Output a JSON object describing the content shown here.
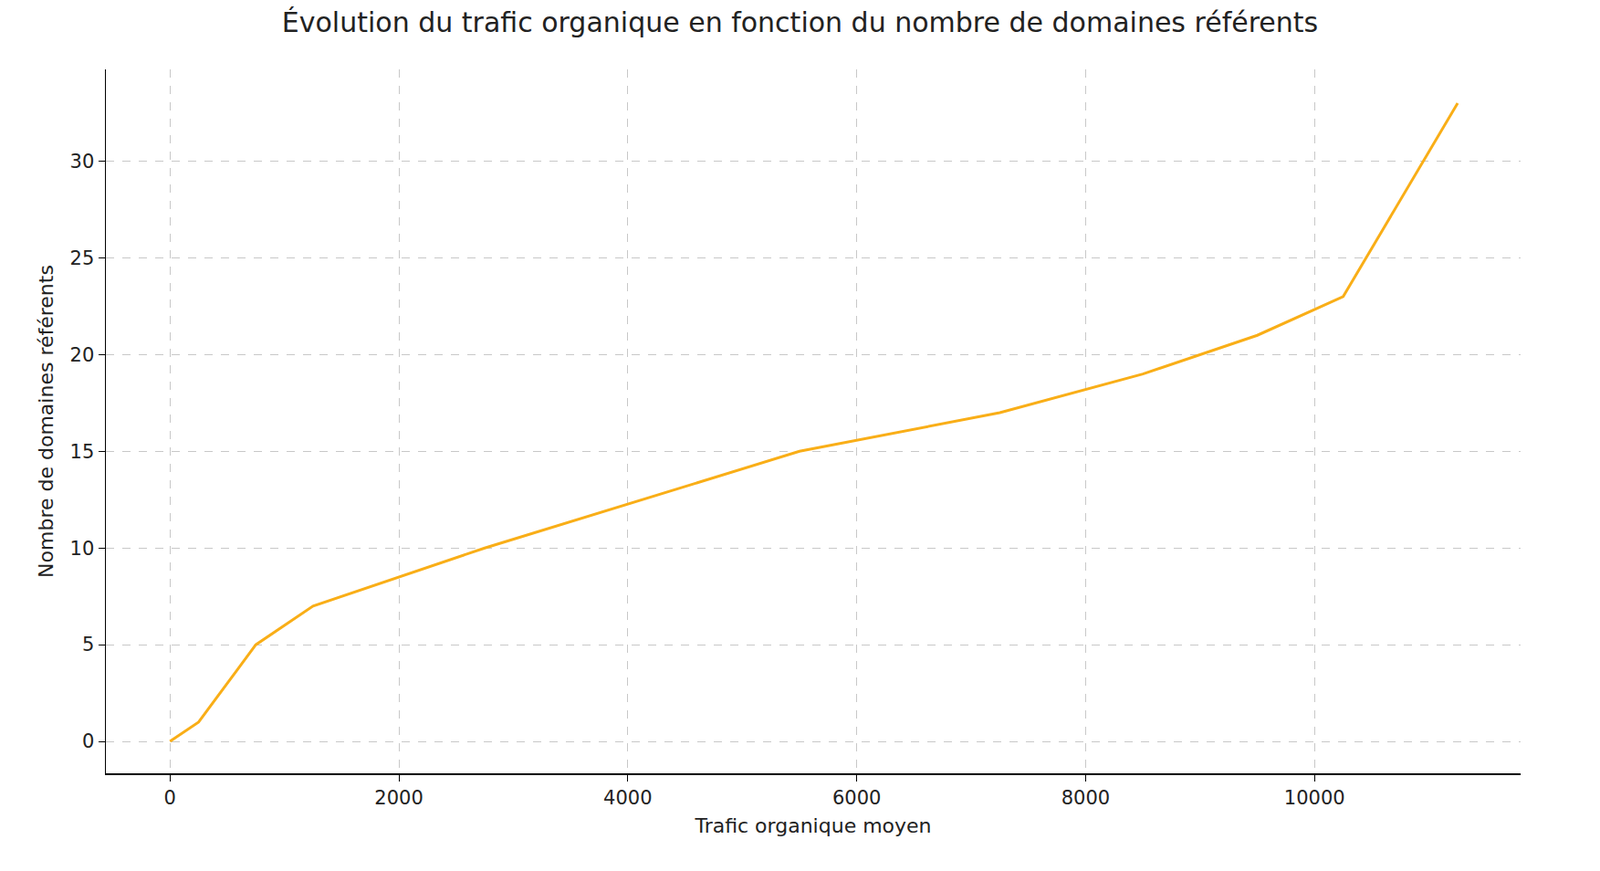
{
  "chart_data": {
    "type": "line",
    "title": "Évolution du trafic organique en fonction du nombre de domaines référents",
    "x_label": "Trafic organique moyen",
    "y_label": "Nombre de domaines référents",
    "x": [
      0,
      250,
      750,
      1250,
      2750,
      5500,
      7250,
      8500,
      9500,
      10250,
      11250
    ],
    "values": [
      0,
      1,
      5,
      7,
      10,
      15,
      17,
      19,
      21,
      23,
      33
    ],
    "color": "#f9ae17",
    "xlim": [
      -560,
      11800
    ],
    "xticks": [
      0,
      2000,
      4000,
      6000,
      8000,
      10000
    ],
    "ylim": [
      -1.65,
      34.75
    ],
    "yticks": [
      0,
      5,
      10,
      15,
      20,
      25,
      30
    ],
    "grid": true
  }
}
